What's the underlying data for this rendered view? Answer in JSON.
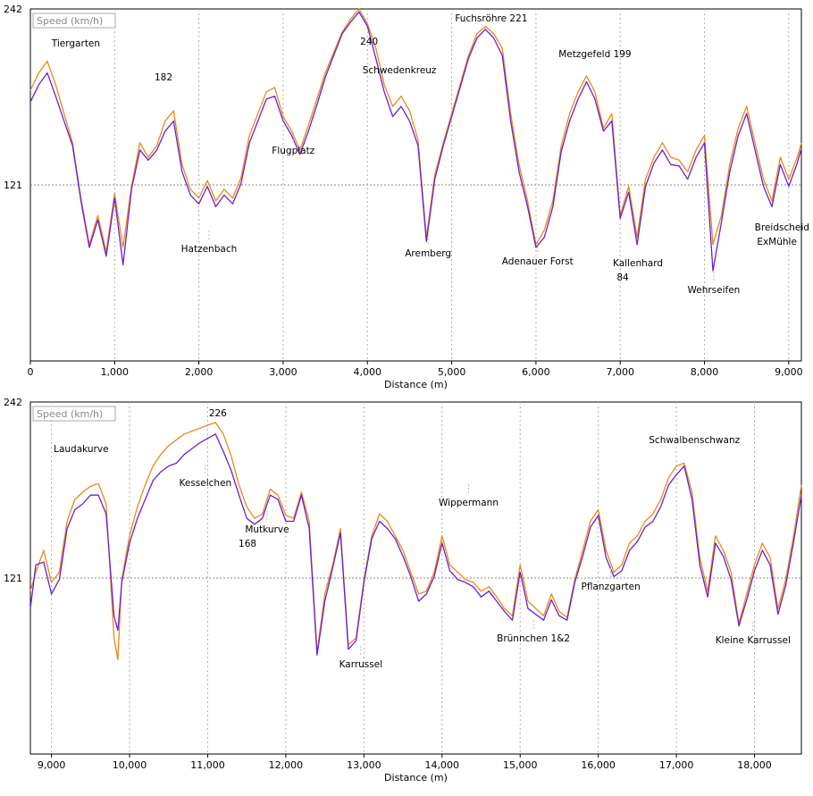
{
  "chart_data": [
    {
      "type": "line",
      "legend": "Speed (km/h)",
      "xlabel": "Distance (m)",
      "xlim": [
        0,
        9150
      ],
      "ylim": [
        0,
        242
      ],
      "y_ticks": [
        "242",
        "121"
      ],
      "x_ticks": [
        {
          "value": 0,
          "label": "0"
        },
        {
          "value": 1000,
          "label": "1,000"
        },
        {
          "value": 2000,
          "label": "2,000"
        },
        {
          "value": 3000,
          "label": "3,000"
        },
        {
          "value": 4000,
          "label": "4,000"
        },
        {
          "value": 5000,
          "label": "5,000"
        },
        {
          "value": 6000,
          "label": "6,000"
        },
        {
          "value": 7000,
          "label": "7,000"
        },
        {
          "value": 8000,
          "label": "8,000"
        },
        {
          "value": 9000,
          "label": "9,000"
        }
      ],
      "grid": true,
      "colors": {
        "orange": "#e8891a",
        "purple": "#6a1fd6",
        "grid": "#888888"
      },
      "series": [
        {
          "color": "orange",
          "x": [
            0,
            100,
            200,
            300,
            400,
            500,
            600,
            700,
            800,
            900,
            1000,
            1100,
            1200,
            1300,
            1400,
            1500,
            1600,
            1700,
            1800,
            1900,
            2000,
            2100,
            2200,
            2300,
            2400,
            2500,
            2600,
            2700,
            2800,
            2900,
            3000,
            3100,
            3200,
            3300,
            3400,
            3500,
            3600,
            3700,
            3800,
            3900,
            4000,
            4100,
            4200,
            4300,
            4400,
            4500,
            4600,
            4700,
            4800,
            4900,
            5000,
            5100,
            5200,
            5300,
            5400,
            5500,
            5600,
            5700,
            5800,
            5900,
            6000,
            6100,
            6200,
            6300,
            6400,
            6500,
            6600,
            6700,
            6800,
            6900,
            7000,
            7100,
            7200,
            7300,
            7400,
            7500,
            7600,
            7700,
            7800,
            7900,
            8000,
            8100,
            8200,
            8300,
            8400,
            8500,
            8600,
            8700,
            8800,
            8900,
            9000,
            9100,
            9150
          ],
          "y": [
            186,
            198,
            206,
            190,
            170,
            150,
            112,
            80,
            100,
            75,
            115,
            78,
            120,
            150,
            140,
            148,
            165,
            172,
            135,
            118,
            112,
            124,
            110,
            118,
            112,
            126,
            155,
            170,
            185,
            188,
            168,
            158,
            145,
            162,
            180,
            198,
            212,
            226,
            235,
            242,
            232,
            215,
            190,
            175,
            182,
            172,
            152,
            85,
            128,
            150,
            170,
            190,
            210,
            225,
            230,
            225,
            215,
            170,
            135,
            110,
            80,
            90,
            110,
            148,
            170,
            185,
            196,
            185,
            160,
            170,
            100,
            120,
            85,
            125,
            140,
            150,
            140,
            138,
            130,
            145,
            155,
            80,
            100,
            135,
            160,
            175,
            150,
            125,
            110,
            140,
            125,
            140,
            150
          ]
        },
        {
          "color": "purple",
          "x": [
            0,
            100,
            200,
            300,
            400,
            500,
            600,
            700,
            800,
            900,
            1000,
            1100,
            1200,
            1300,
            1400,
            1500,
            1600,
            1700,
            1800,
            1900,
            2000,
            2100,
            2200,
            2300,
            2400,
            2500,
            2600,
            2700,
            2800,
            2900,
            3000,
            3100,
            3200,
            3300,
            3400,
            3500,
            3600,
            3700,
            3800,
            3900,
            4000,
            4100,
            4200,
            4300,
            4400,
            4500,
            4600,
            4700,
            4800,
            4900,
            5000,
            5100,
            5200,
            5300,
            5400,
            5500,
            5600,
            5700,
            5800,
            5900,
            6000,
            6100,
            6200,
            6300,
            6400,
            6500,
            6600,
            6700,
            6800,
            6900,
            7000,
            7100,
            7200,
            7300,
            7400,
            7500,
            7600,
            7700,
            7800,
            7900,
            8000,
            8100,
            8200,
            8300,
            8400,
            8500,
            8600,
            8700,
            8800,
            8900,
            9000,
            9100,
            9150
          ],
          "y": [
            178,
            190,
            198,
            182,
            165,
            148,
            110,
            78,
            97,
            72,
            112,
            66,
            118,
            145,
            138,
            145,
            158,
            165,
            130,
            114,
            108,
            120,
            106,
            114,
            108,
            122,
            150,
            165,
            180,
            182,
            165,
            155,
            142,
            158,
            176,
            195,
            210,
            225,
            233,
            240,
            230,
            208,
            185,
            168,
            175,
            165,
            148,
            82,
            125,
            148,
            168,
            188,
            208,
            222,
            228,
            222,
            210,
            165,
            130,
            106,
            78,
            85,
            106,
            144,
            165,
            180,
            192,
            180,
            158,
            165,
            98,
            116,
            80,
            120,
            136,
            145,
            135,
            134,
            125,
            140,
            150,
            62,
            95,
            130,
            155,
            170,
            145,
            120,
            106,
            135,
            120,
            136,
            146
          ]
        }
      ],
      "annotations": [
        {
          "text": "Tiergarten",
          "x": 540
        },
        {
          "text": "182",
          "x": 1580
        },
        {
          "text": "Hatzenbach",
          "x": 2120
        },
        {
          "text": "Flugplatz",
          "x": 3120
        },
        {
          "text": "240",
          "x": 4020
        },
        {
          "text": "Schwedenkreuz",
          "x": 4380
        },
        {
          "text": "Aremberg",
          "x": 4720
        },
        {
          "text": "Fuchsröhre 221",
          "x": 5470
        },
        {
          "text": "Adenauer Forst",
          "x": 6020
        },
        {
          "text": "Metzgefeld 199",
          "x": 6700
        },
        {
          "text": "Kallenhard",
          "x": 7210
        },
        {
          "text": "84",
          "x": 7030
        },
        {
          "text": "Wehrseifen",
          "x": 8110
        },
        {
          "text": "Breidscheid",
          "x": 8920
        },
        {
          "text": "ExMühle",
          "x": 8860
        }
      ]
    },
    {
      "type": "line",
      "legend": "Speed (km/h)",
      "xlabel": "Distance (m)",
      "xlim": [
        8730,
        18600
      ],
      "ylim": [
        0,
        242
      ],
      "y_ticks": [
        "242",
        "121"
      ],
      "x_ticks": [
        {
          "value": 9000,
          "label": "9,000"
        },
        {
          "value": 10000,
          "label": "10,000"
        },
        {
          "value": 11000,
          "label": "11,000"
        },
        {
          "value": 12000,
          "label": "12,000"
        },
        {
          "value": 13000,
          "label": "13,000"
        },
        {
          "value": 14000,
          "label": "14,000"
        },
        {
          "value": 15000,
          "label": "15,000"
        },
        {
          "value": 16000,
          "label": "16,000"
        },
        {
          "value": 17000,
          "label": "17,000"
        },
        {
          "value": 18000,
          "label": "18,000"
        }
      ],
      "grid": true,
      "colors": {
        "orange": "#e8891a",
        "purple": "#6a1fd6",
        "grid": "#888888"
      },
      "series": [
        {
          "color": "orange",
          "x": [
            8730,
            8800,
            8900,
            9000,
            9100,
            9200,
            9300,
            9400,
            9500,
            9600,
            9700,
            9800,
            9850,
            9900,
            10000,
            10100,
            10200,
            10300,
            10400,
            10500,
            10600,
            10700,
            10800,
            10900,
            11000,
            11100,
            11200,
            11300,
            11400,
            11500,
            11600,
            11700,
            11800,
            11900,
            12000,
            12100,
            12200,
            12300,
            12400,
            12500,
            12600,
            12700,
            12800,
            12900,
            13000,
            13100,
            13200,
            13300,
            13400,
            13500,
            13600,
            13700,
            13800,
            13900,
            14000,
            14100,
            14200,
            14300,
            14400,
            14500,
            14600,
            14700,
            14800,
            14900,
            15000,
            15100,
            15200,
            15300,
            15400,
            15500,
            15600,
            15700,
            15800,
            15900,
            16000,
            16100,
            16200,
            16300,
            16400,
            16500,
            16600,
            16700,
            16800,
            16900,
            17000,
            17100,
            17200,
            17300,
            17400,
            17500,
            17600,
            17700,
            17800,
            17900,
            18000,
            18100,
            18200,
            18300,
            18400,
            18500,
            18600
          ],
          "y": [
            112,
            125,
            140,
            118,
            125,
            160,
            175,
            180,
            184,
            186,
            172,
            80,
            65,
            120,
            150,
            170,
            185,
            198,
            206,
            212,
            216,
            220,
            222,
            224,
            226,
            228,
            220,
            205,
            185,
            170,
            162,
            165,
            182,
            178,
            164,
            162,
            180,
            160,
            70,
            110,
            130,
            155,
            75,
            80,
            120,
            150,
            165,
            160,
            150,
            140,
            125,
            110,
            112,
            125,
            150,
            130,
            125,
            120,
            118,
            112,
            115,
            108,
            100,
            95,
            130,
            105,
            100,
            95,
            110,
            98,
            94,
            120,
            140,
            160,
            168,
            140,
            125,
            130,
            145,
            150,
            160,
            165,
            175,
            190,
            198,
            200,
            180,
            135,
            112,
            150,
            140,
            125,
            90,
            110,
            130,
            145,
            135,
            100,
            120,
            150,
            185
          ]
        },
        {
          "color": "purple",
          "x": [
            8730,
            8800,
            8900,
            9000,
            9100,
            9200,
            9300,
            9400,
            9500,
            9600,
            9700,
            9800,
            9850,
            9900,
            10000,
            10100,
            10200,
            10300,
            10400,
            10500,
            10600,
            10700,
            10800,
            10900,
            11000,
            11100,
            11200,
            11300,
            11400,
            11500,
            11600,
            11700,
            11800,
            11900,
            12000,
            12100,
            12200,
            12300,
            12400,
            12500,
            12600,
            12700,
            12800,
            12900,
            13000,
            13100,
            13200,
            13300,
            13400,
            13500,
            13600,
            13700,
            13800,
            13900,
            14000,
            14100,
            14200,
            14300,
            14400,
            14500,
            14600,
            14700,
            14800,
            14900,
            15000,
            15100,
            15200,
            15300,
            15400,
            15500,
            15600,
            15700,
            15800,
            15900,
            16000,
            16100,
            16200,
            16300,
            16400,
            16500,
            16600,
            16700,
            16800,
            16900,
            17000,
            17100,
            17200,
            17300,
            17400,
            17500,
            17600,
            17700,
            17800,
            17900,
            18000,
            18100,
            18200,
            18300,
            18400,
            18500,
            18600
          ],
          "y": [
            100,
            130,
            132,
            110,
            120,
            155,
            168,
            172,
            178,
            178,
            165,
            95,
            85,
            118,
            145,
            162,
            175,
            188,
            194,
            198,
            200,
            206,
            210,
            214,
            217,
            220,
            208,
            195,
            178,
            162,
            158,
            162,
            178,
            175,
            160,
            160,
            178,
            155,
            68,
            105,
            128,
            152,
            72,
            78,
            118,
            148,
            160,
            155,
            148,
            136,
            122,
            105,
            110,
            122,
            145,
            126,
            120,
            118,
            115,
            108,
            112,
            105,
            98,
            92,
            125,
            100,
            96,
            92,
            106,
            95,
            92,
            118,
            136,
            156,
            164,
            135,
            122,
            126,
            140,
            146,
            156,
            160,
            170,
            185,
            192,
            198,
            175,
            130,
            108,
            145,
            136,
            120,
            88,
            106,
            126,
            140,
            130,
            96,
            116,
            146,
            178
          ]
        }
      ],
      "annotations": [
        {
          "text": "Laudakurve",
          "x": 9380
        },
        {
          "text": "226",
          "x": 11130
        },
        {
          "text": "Kesselchen",
          "x": 10970
        },
        {
          "text": "Mutkurve",
          "x": 11760
        },
        {
          "text": "168",
          "x": 11510
        },
        {
          "text": "Karrussel",
          "x": 12960
        },
        {
          "text": "Wippermann",
          "x": 14340
        },
        {
          "text": "Brünnchen 1&2",
          "x": 15170
        },
        {
          "text": "Pflanzgarten",
          "x": 16160
        },
        {
          "text": "Schwalbenschwanz",
          "x": 17230
        },
        {
          "text": "Kleine Karrussel",
          "x": 17980
        }
      ]
    }
  ]
}
